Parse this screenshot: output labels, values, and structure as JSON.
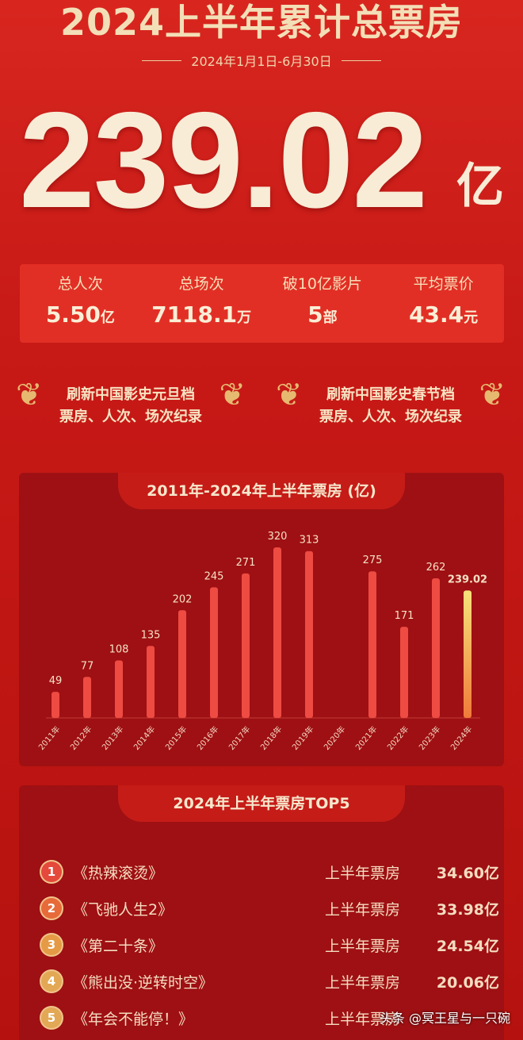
{
  "header": {
    "title": "2024上半年累计总票房",
    "date_range": "2024年1月1日-6月30日",
    "total": "239.02",
    "total_unit": "亿"
  },
  "stats": [
    {
      "label": "总人次",
      "value": "5.50",
      "unit": "亿"
    },
    {
      "label": "总场次",
      "value": "7118.1",
      "unit": "万"
    },
    {
      "label": "破10亿影片",
      "value": "5",
      "unit": "部"
    },
    {
      "label": "平均票价",
      "value": "43.4",
      "unit": "元"
    }
  ],
  "records": [
    {
      "line1": "刷新中国影史元旦档",
      "line2": "票房、人次、场次纪录"
    },
    {
      "line1": "刷新中国影史春节档",
      "line2": "票房、人次、场次纪录"
    }
  ],
  "chart_data": {
    "type": "bar",
    "title": "2011年-2024年上半年票房 (亿)",
    "categories": [
      "2011年",
      "2012年",
      "2013年",
      "2014年",
      "2015年",
      "2016年",
      "2017年",
      "2018年",
      "2019年",
      "2020年",
      "2021年",
      "2022年",
      "2023年",
      "2024年"
    ],
    "values": [
      49,
      77,
      108,
      135,
      202,
      245,
      271,
      320,
      313,
      null,
      275,
      171,
      262,
      239.02
    ],
    "labels": [
      "49",
      "77",
      "108",
      "135",
      "202",
      "245",
      "271",
      "320",
      "313",
      "",
      "275",
      "171",
      "262",
      "239.02"
    ],
    "colors": {
      "bar": "#ee4b43",
      "highlight": "#f5b43a"
    },
    "ylim": [
      0,
      320
    ]
  },
  "top5": {
    "title": "2024年上半年票房TOP5",
    "items": [
      {
        "rank": "1",
        "name": "《热辣滚烫》",
        "label": "上半年票房",
        "value": "34.60亿",
        "color": "#e4493b"
      },
      {
        "rank": "2",
        "name": "《飞驰人生2》",
        "label": "上半年票房",
        "value": "33.98亿",
        "color": "#e76a3a"
      },
      {
        "rank": "3",
        "name": "《第二十条》",
        "label": "上半年票房",
        "value": "24.54亿",
        "color": "#e59a45"
      },
      {
        "rank": "4",
        "name": "《熊出没·逆转时空》",
        "label": "上半年票房",
        "value": "20.06亿",
        "color": "#e2a855"
      },
      {
        "rank": "5",
        "name": "《年会不能停！》",
        "label": "上半年票房",
        "value": "",
        "color": "#e2a855"
      }
    ]
  },
  "watermark": "头条 @冥王星与一只碗"
}
